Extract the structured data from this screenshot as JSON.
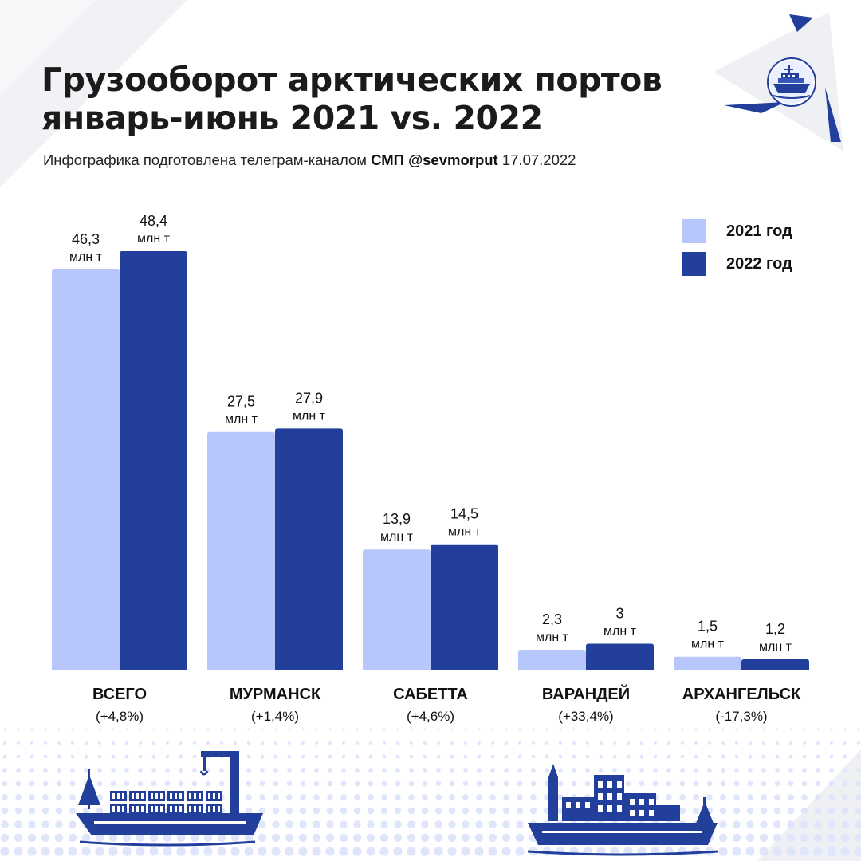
{
  "header": {
    "title_line1": "Грузооборот арктических портов",
    "title_line2": "январь-июнь 2021 vs. 2022",
    "subtitle_prefix": "Инфографика подготовлена телеграм-каналом",
    "subtitle_channel": "СМП @sevmorput",
    "subtitle_date": "17.07.2022"
  },
  "legend": {
    "items": [
      {
        "label": "2021 год",
        "color": "#b7c6fb"
      },
      {
        "label": "2022 год",
        "color": "#22409b"
      }
    ]
  },
  "colors": {
    "series_2021": "#b7c6fb",
    "series_2022": "#22409b",
    "accent": "#22409b",
    "pattern_dots": "#dfe6fb",
    "bg_triangles": "#eef0f4"
  },
  "icons": [
    "icebreaker-logo-icon",
    "cargo-ship-icon",
    "port-city-icon"
  ],
  "chart_data": {
    "type": "bar",
    "categories": [
      "ВСЕГО",
      "МУРМАНСК",
      "САБЕТТА",
      "ВАРАНДЕЙ",
      "АРХАНГЕЛЬСК"
    ],
    "category_notes": [
      "(+4,8%)",
      "(+1,4%)",
      "(+4,6%)",
      "(+33,4%)",
      "(-17,3%)"
    ],
    "unit": "млн т",
    "series": [
      {
        "name": "2021 год",
        "values": [
          46.3,
          27.5,
          13.9,
          2.3,
          1.5
        ],
        "labels": [
          "46,3",
          "27,5",
          "13,9",
          "2,3",
          "1,5"
        ]
      },
      {
        "name": "2022 год",
        "values": [
          48.4,
          27.9,
          14.5,
          3,
          1.2
        ],
        "labels": [
          "48,4",
          "27,9",
          "14,5",
          "3",
          "1,2"
        ]
      }
    ],
    "ylim": [
      0,
      48.4
    ],
    "grid": false,
    "legend_position": "top-right"
  }
}
